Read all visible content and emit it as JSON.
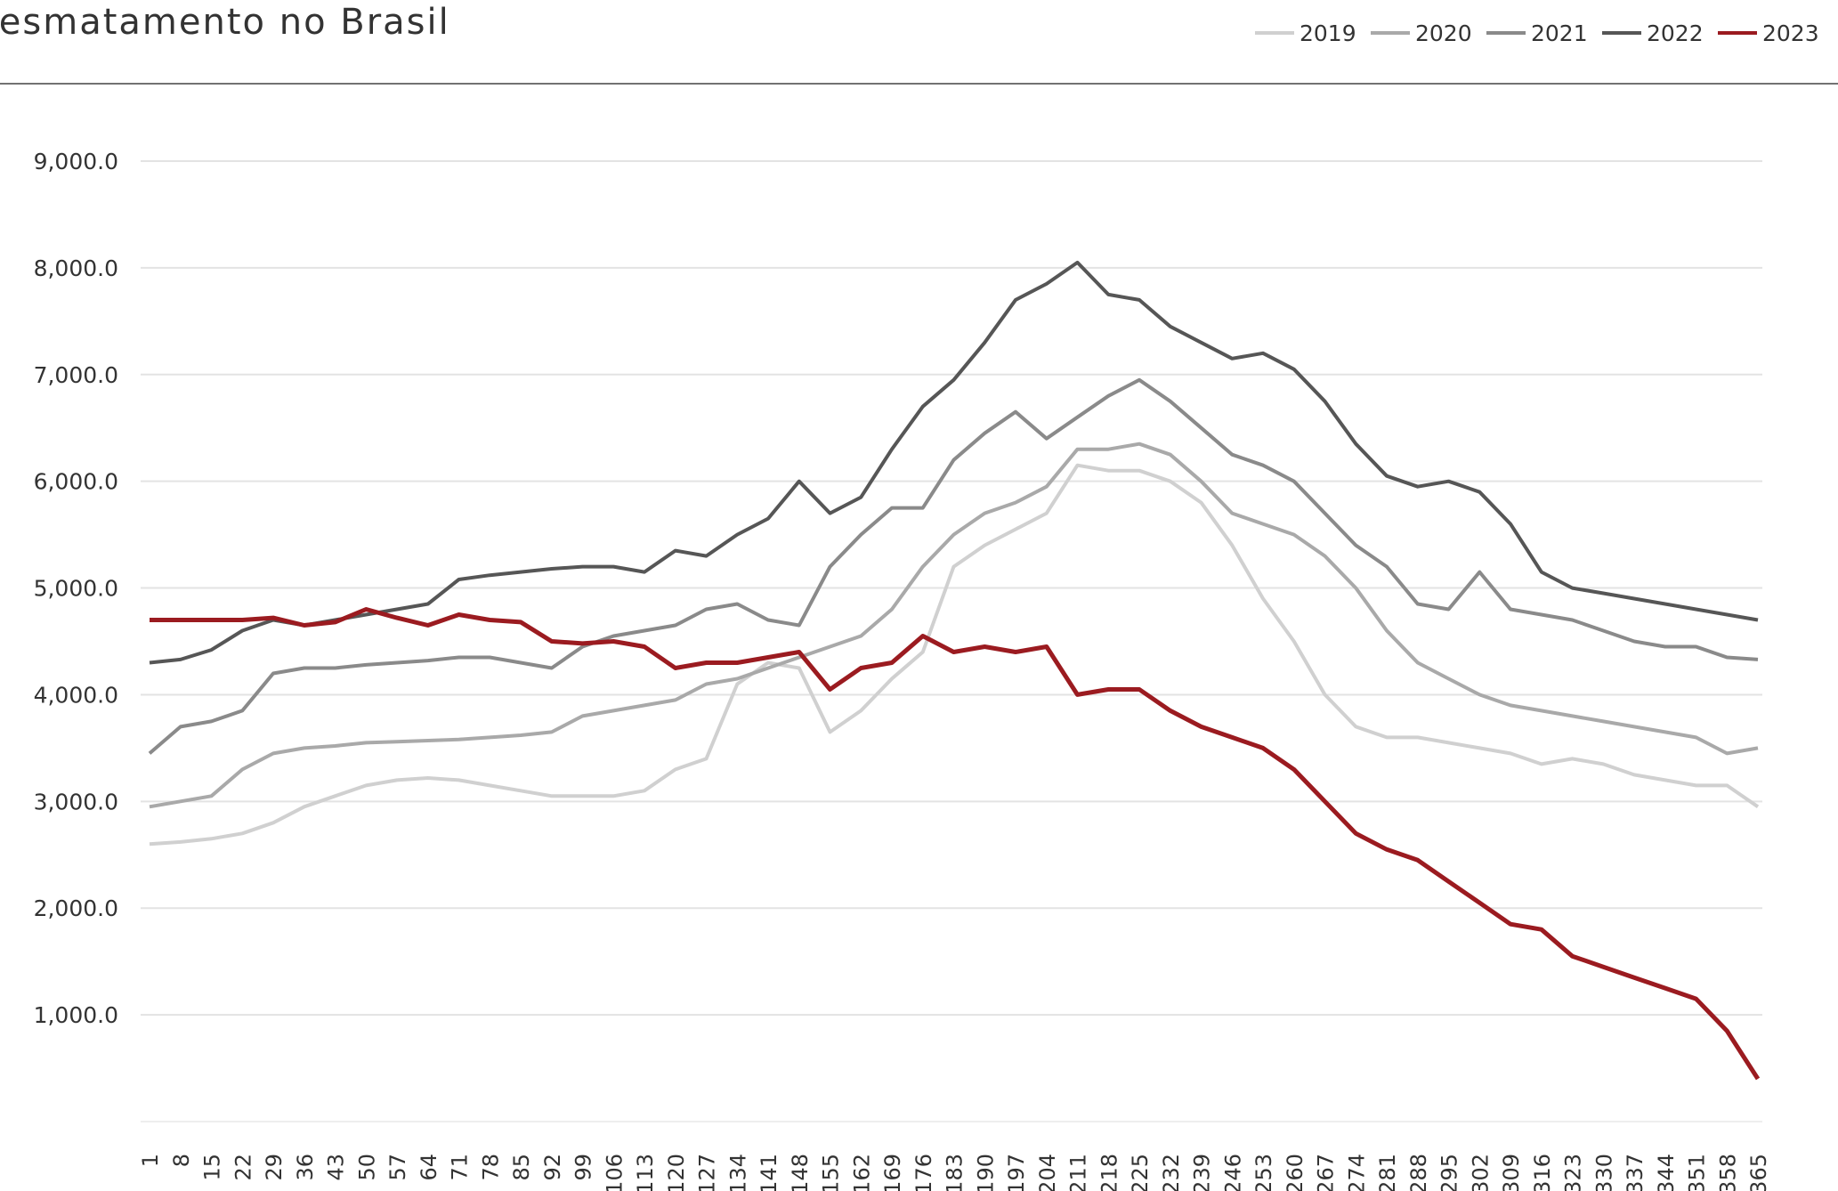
{
  "chart_data": {
    "type": "line",
    "title": "Desmatamento no Brasil",
    "x": [
      1,
      8,
      15,
      22,
      29,
      36,
      43,
      50,
      57,
      64,
      71,
      78,
      85,
      92,
      99,
      106,
      113,
      120,
      127,
      134,
      141,
      148,
      155,
      162,
      169,
      176,
      183,
      190,
      197,
      204,
      211,
      218,
      225,
      232,
      239,
      246,
      253,
      260,
      267,
      274,
      281,
      288,
      295,
      302,
      309,
      316,
      323,
      330,
      337,
      344,
      351,
      358,
      365
    ],
    "xlim": [
      1,
      365
    ],
    "xticks": [
      1,
      8,
      15,
      22,
      29,
      36,
      43,
      50,
      57,
      64,
      71,
      78,
      85,
      92,
      99,
      106,
      113,
      120,
      127,
      134,
      141,
      148,
      155,
      162,
      169,
      176,
      183,
      190,
      197,
      204,
      211,
      218,
      225,
      232,
      239,
      246,
      253,
      260,
      267,
      274,
      281,
      288,
      295,
      302,
      309,
      316,
      323,
      330,
      337,
      344,
      351,
      358,
      365
    ],
    "ylim": [
      0,
      9000
    ],
    "yticks": [
      {
        "value": 1000,
        "label": "1,000.0"
      },
      {
        "value": 2000,
        "label": "2,000.0"
      },
      {
        "value": 3000,
        "label": "3,000.0"
      },
      {
        "value": 4000,
        "label": "4,000.0"
      },
      {
        "value": 5000,
        "label": "5,000.0"
      },
      {
        "value": 6000,
        "label": "6,000.0"
      },
      {
        "value": 7000,
        "label": "7,000.0"
      },
      {
        "value": 8000,
        "label": "8,000.0"
      },
      {
        "value": 9000,
        "label": "9,000.0"
      }
    ],
    "grid": true,
    "legend": "top-right",
    "series": [
      {
        "name": "2019",
        "color": "#d0d0d0",
        "values": [
          2600,
          2620,
          2650,
          2700,
          2800,
          2950,
          3050,
          3150,
          3200,
          3220,
          3200,
          3150,
          3100,
          3050,
          3050,
          3050,
          3100,
          3300,
          3400,
          4100,
          4300,
          4250,
          3650,
          3850,
          4150,
          4400,
          5200,
          5400,
          5550,
          5700,
          6150,
          6100,
          6100,
          6000,
          5800,
          5400,
          4900,
          4500,
          4000,
          3700,
          3600,
          3600,
          3550,
          3500,
          3450,
          3350,
          3400,
          3350,
          3250,
          3200,
          3150,
          3150,
          2950
        ]
      },
      {
        "name": "2020",
        "color": "#a9a9a9",
        "values": [
          2950,
          3000,
          3050,
          3300,
          3450,
          3500,
          3520,
          3550,
          3560,
          3570,
          3580,
          3600,
          3620,
          3650,
          3800,
          3850,
          3900,
          3950,
          4100,
          4150,
          4250,
          4350,
          4450,
          4550,
          4800,
          5200,
          5500,
          5700,
          5800,
          5950,
          6300,
          6300,
          6350,
          6250,
          6000,
          5700,
          5600,
          5500,
          5300,
          5000,
          4600,
          4300,
          4150,
          4000,
          3900,
          3850,
          3800,
          3750,
          3700,
          3650,
          3600,
          3450,
          3500
        ]
      },
      {
        "name": "2021",
        "color": "#8a8a8a",
        "values": [
          3450,
          3700,
          3750,
          3850,
          4200,
          4250,
          4250,
          4280,
          4300,
          4320,
          4350,
          4350,
          4300,
          4250,
          4450,
          4550,
          4600,
          4650,
          4800,
          4850,
          4700,
          4650,
          5200,
          5500,
          5750,
          5750,
          6200,
          6450,
          6650,
          6400,
          6600,
          6800,
          6950,
          6750,
          6500,
          6250,
          6150,
          6000,
          5700,
          5400,
          5200,
          4850,
          4800,
          5150,
          4800,
          4750,
          4700,
          4600,
          4500,
          4450,
          4450,
          4350,
          4330
        ]
      },
      {
        "name": "2022",
        "color": "#565656",
        "values": [
          4300,
          4330,
          4420,
          4600,
          4700,
          4650,
          4700,
          4750,
          4800,
          4850,
          5080,
          5120,
          5150,
          5180,
          5200,
          5200,
          5150,
          5350,
          5300,
          5500,
          5650,
          6000,
          5700,
          5850,
          6300,
          6700,
          6950,
          7300,
          7700,
          7850,
          8050,
          7750,
          7700,
          7450,
          7300,
          7150,
          7200,
          7050,
          6750,
          6350,
          6050,
          5950,
          6000,
          5900,
          5600,
          5150,
          5000,
          4950,
          4900,
          4850,
          4800,
          4750,
          4700
        ]
      },
      {
        "name": "2023",
        "color": "#9b1b20",
        "values": [
          4700,
          4700,
          4700,
          4700,
          4720,
          4650,
          4680,
          4800,
          4720,
          4650,
          4750,
          4700,
          4680,
          4500,
          4480,
          4500,
          4450,
          4250,
          4300,
          4300,
          4350,
          4400,
          4050,
          4250,
          4300,
          4550,
          4400,
          4450,
          4400,
          4450,
          4000,
          4050,
          4050,
          3850,
          3700,
          3600,
          3500,
          3300,
          3000,
          2700,
          2550,
          2450,
          2250,
          2050,
          1850,
          1800,
          1550,
          1450,
          1350,
          1250,
          1150,
          850,
          400
        ]
      }
    ]
  }
}
